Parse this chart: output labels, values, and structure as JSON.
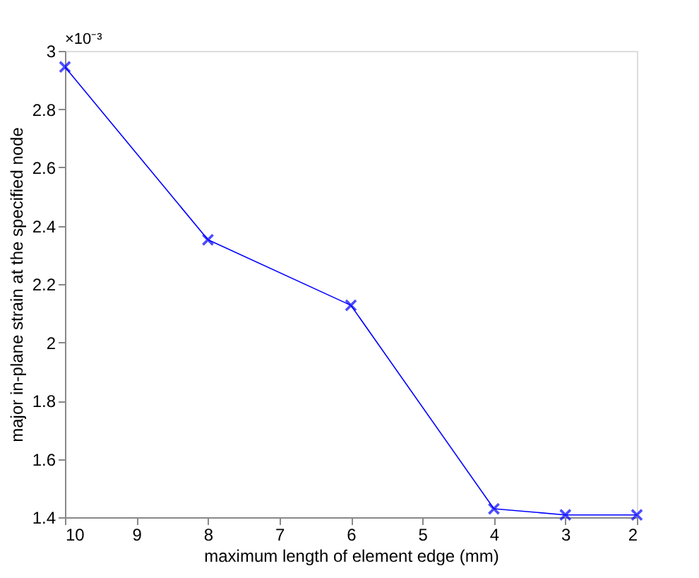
{
  "chart_data": {
    "type": "line",
    "xlabel": "maximum length of element edge (mm)",
    "ylabel": "major in-plane strain at the specified node",
    "annotations": [
      "×10⁻³"
    ],
    "x": [
      10,
      8,
      6,
      4,
      3,
      2
    ],
    "series": [
      {
        "color": "#0000ff",
        "values": [
          2.945,
          2.352,
          2.127,
          1.429,
          1.408,
          1.408
        ]
      }
    ],
    "xlim": [
      10,
      2
    ],
    "xticks": [
      10,
      9,
      8,
      7,
      6,
      5,
      4,
      3,
      2
    ],
    "ylim": [
      1.4,
      3
    ],
    "yticks": [
      1.4,
      1.6,
      1.8,
      2,
      2.2,
      2.4,
      2.6,
      2.8,
      3
    ],
    "marker": "cross",
    "line_style": "solid",
    "grid": false,
    "legend": false
  }
}
